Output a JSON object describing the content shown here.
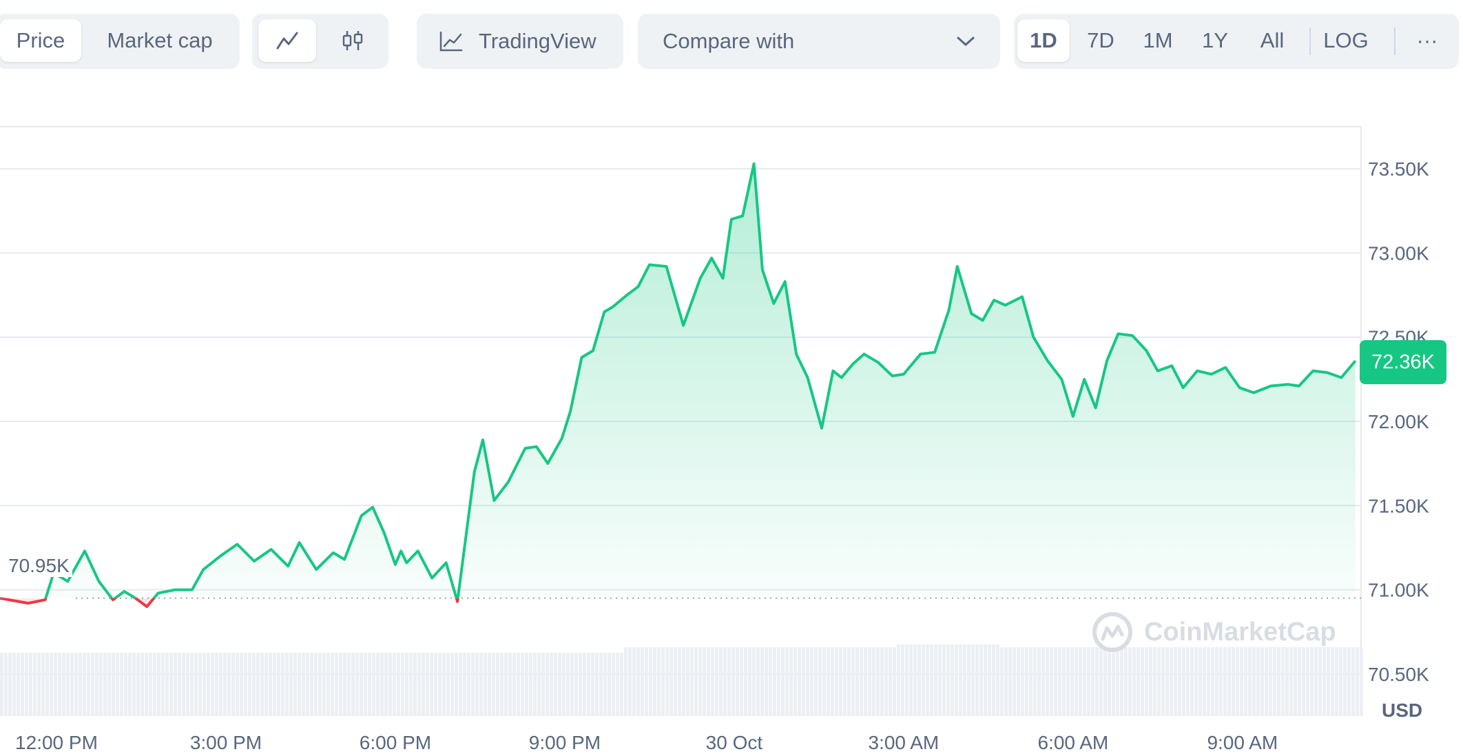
{
  "toolbar": {
    "metric_tabs": [
      "Price",
      "Market cap"
    ],
    "active_metric": "Price",
    "chart_style_icons": [
      "line-chart-icon",
      "candlestick-chart-icon"
    ],
    "tradingview_label": "TradingView",
    "compare_label": "Compare with",
    "ranges": [
      "1D",
      "7D",
      "1M",
      "1Y",
      "All"
    ],
    "active_range": "1D",
    "log_label": "LOG",
    "more_label": "···"
  },
  "colors": {
    "up": "#16c784",
    "down": "#ea3943",
    "grid": "#e6e9ef",
    "text": "#58667e"
  },
  "current_price_label": "72.36K",
  "start_price_label": "70.95K",
  "currency_label": "USD",
  "watermark": "CoinMarketCap",
  "chart_data": {
    "type": "area",
    "title": "",
    "xlabel": "",
    "ylabel": "USD",
    "ylim": [
      70250,
      73750
    ],
    "y_ticks": [
      70500,
      71000,
      71500,
      72000,
      72500,
      73000,
      73500
    ],
    "y_tick_labels": [
      "70.50K",
      "71.00K",
      "71.50K",
      "72.00K",
      "72.50K",
      "73.00K",
      "73.50K"
    ],
    "x_tick_labels": [
      "12:00 PM",
      "3:00 PM",
      "6:00 PM",
      "9:00 PM",
      "30 Oct",
      "3:00 AM",
      "6:00 AM",
      "9:00 AM"
    ],
    "x_tick_hours": [
      1,
      4,
      7,
      10,
      13,
      16,
      19,
      22
    ],
    "x_range_hours": [
      0,
      24.1
    ],
    "baseline": 70950,
    "current": 72360,
    "series": [
      {
        "x_hours": [
          0,
          0.5,
          0.8,
          0.95,
          1.2,
          1.5,
          1.75,
          2.0,
          2.2,
          2.4,
          2.6,
          2.8,
          3.1,
          3.4,
          3.6,
          3.9,
          4.2,
          4.5,
          4.8,
          5.1,
          5.3,
          5.6,
          5.9,
          6.1,
          6.4,
          6.6,
          6.8,
          7.0,
          7.1,
          7.2,
          7.4,
          7.65,
          7.9,
          8.1,
          8.4,
          8.55,
          8.75,
          9.0,
          9.3,
          9.5,
          9.7,
          9.95,
          10.1,
          10.3,
          10.5,
          10.7,
          10.85,
          11.1,
          11.3,
          11.5,
          11.8,
          12.1,
          12.4,
          12.6,
          12.8,
          12.95,
          13.15,
          13.35,
          13.5,
          13.7,
          13.9,
          14.1,
          14.3,
          14.55,
          14.75,
          14.9,
          15.1,
          15.3,
          15.55,
          15.8,
          16.0,
          16.3,
          16.55,
          16.8,
          16.95,
          17.2,
          17.4,
          17.6,
          17.8,
          18.1,
          18.3,
          18.55,
          18.8,
          19.0,
          19.2,
          19.4,
          19.6,
          19.8,
          20.05,
          20.3,
          20.5,
          20.75,
          20.95,
          21.2,
          21.45,
          21.7,
          21.95,
          22.2,
          22.5,
          22.8,
          23.0,
          23.25,
          23.5,
          23.75,
          24.0
        ],
        "values": [
          70950,
          70920,
          70940,
          71100,
          71050,
          71230,
          71050,
          70940,
          70990,
          70950,
          70900,
          70980,
          71000,
          71000,
          71120,
          71200,
          71270,
          71170,
          71240,
          71140,
          71280,
          71120,
          71220,
          71180,
          71440,
          71490,
          71340,
          71150,
          71230,
          71160,
          71230,
          71070,
          71160,
          70930,
          71700,
          71890,
          71530,
          71640,
          71840,
          71850,
          71750,
          71900,
          72060,
          72380,
          72420,
          72650,
          72680,
          72750,
          72800,
          72930,
          72920,
          72570,
          72850,
          72970,
          72850,
          73200,
          73220,
          73530,
          72900,
          72700,
          72830,
          72400,
          72260,
          71960,
          72300,
          72260,
          72340,
          72400,
          72350,
          72270,
          72280,
          72400,
          72410,
          72660,
          72920,
          72640,
          72600,
          72720,
          72690,
          72740,
          72500,
          72360,
          72250,
          72030,
          72250,
          72080,
          72360,
          72520,
          72510,
          72420,
          72300,
          72330,
          72200,
          72300,
          72280,
          72320,
          72200,
          72170,
          72210,
          72220,
          72210,
          72300,
          72290,
          72260,
          72360
        ]
      }
    ],
    "volume_note": "faint volume bars along bottom of plot"
  }
}
